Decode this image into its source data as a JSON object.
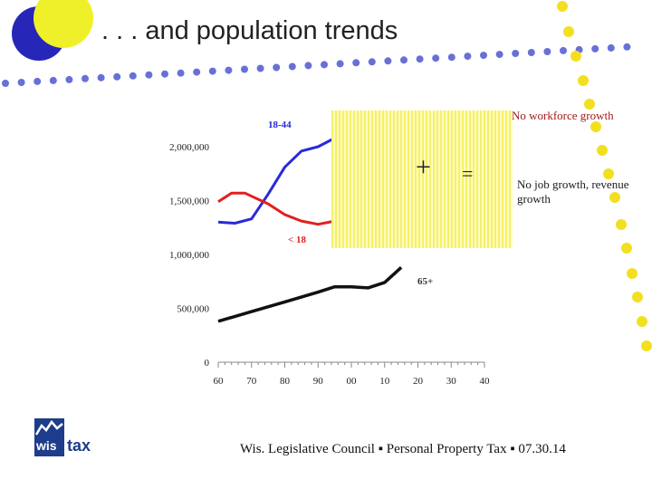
{
  "slide": {
    "title": ". . . and population trends",
    "footer": "Wis. Legislative Council ▪ Personal Property Tax ▪ 07.30.14",
    "logo": {
      "left": "wis",
      "right": "tax"
    }
  },
  "notes": {
    "plus": "+",
    "equals": "=",
    "workforce": "No workforce growth",
    "jobs": "No job growth, revenue growth"
  },
  "colors": {
    "blue_circle": "#2626b8",
    "yellow_circle": "#f0f02a",
    "dots_blue": "#6870d8",
    "dots_yellow": "#f2e020",
    "series_18_44": "#2a2ad8",
    "series_under18": "#e02020",
    "series_65plus": "#111111",
    "note_red": "#a11a1a"
  },
  "chart_data": {
    "type": "line",
    "x_ticks": [
      "60",
      "70",
      "80",
      "90",
      "00",
      "10",
      "20",
      "30",
      "40"
    ],
    "y_ticks": [
      "0",
      "500,000",
      "1,000,000",
      "1,500,000",
      "2,000,000"
    ],
    "ylim": [
      0,
      2000000
    ],
    "series": [
      {
        "name": "18-44",
        "x": [
          1960,
          1965,
          1970,
          1975,
          1980,
          1985,
          1990,
          1995
        ],
        "y": [
          1300000,
          1290000,
          1330000,
          1560000,
          1810000,
          1960000,
          2000000,
          2080000
        ]
      },
      {
        "name": "< 18",
        "x": [
          1960,
          1964,
          1968,
          1970,
          1975,
          1980,
          1985,
          1990,
          1995
        ],
        "y": [
          1490000,
          1570000,
          1570000,
          1540000,
          1470000,
          1370000,
          1310000,
          1280000,
          1310000
        ]
      },
      {
        "name": "65+",
        "x": [
          1960,
          1970,
          1980,
          1990,
          1995,
          2000,
          2005,
          2010,
          2015
        ],
        "y": [
          380000,
          470000,
          560000,
          650000,
          700000,
          700000,
          690000,
          740000,
          880000
        ]
      }
    ]
  }
}
